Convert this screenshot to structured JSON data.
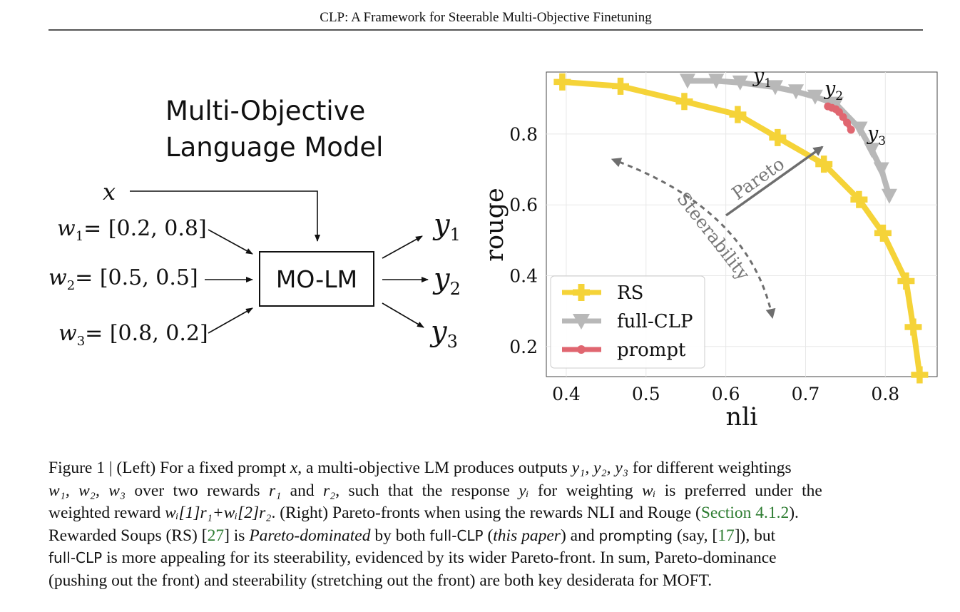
{
  "header": {
    "title": "CLP: A Framework for Steerable Multi-Objective Finetuning"
  },
  "diagram": {
    "title_line1": "Multi-Objective",
    "title_line2": "Language Model",
    "input_label": "x",
    "weights": [
      {
        "name": "w",
        "sub": "1",
        "value": "= [0.2, 0.8]"
      },
      {
        "name": "w",
        "sub": "2",
        "value": "= [0.5, 0.5]"
      },
      {
        "name": "w",
        "sub": "3",
        "value": "= [0.8, 0.2]"
      }
    ],
    "model_label": "MO-LM",
    "outputs": [
      {
        "name": "y",
        "sub": "1"
      },
      {
        "name": "y",
        "sub": "2"
      },
      {
        "name": "y",
        "sub": "3"
      }
    ]
  },
  "chart_data": {
    "type": "line",
    "title": "",
    "xlabel": "nli",
    "ylabel": "rouge",
    "xlim": [
      0.375,
      0.865
    ],
    "ylim": [
      0.115,
      0.975
    ],
    "xticks": [
      "0.4",
      "0.5",
      "0.6",
      "0.7",
      "0.8"
    ],
    "yticks": [
      "0.2",
      "0.4",
      "0.6",
      "0.8"
    ],
    "grid": true,
    "legend_position": "lower-left",
    "series": [
      {
        "name": "RS",
        "color": "#f5d338",
        "marker": "plus",
        "x": [
          0.395,
          0.468,
          0.548,
          0.615,
          0.665,
          0.723,
          0.767,
          0.797,
          0.826,
          0.835,
          0.843
        ],
        "y": [
          0.947,
          0.935,
          0.892,
          0.855,
          0.79,
          0.715,
          0.615,
          0.52,
          0.385,
          0.255,
          0.12
        ]
      },
      {
        "name": "full-CLP",
        "color": "#b8b8b8",
        "marker": "triangle-down",
        "x": [
          0.552,
          0.588,
          0.618,
          0.662,
          0.688,
          0.712,
          0.738,
          0.768,
          0.783,
          0.795,
          0.805
        ],
        "y": [
          0.95,
          0.95,
          0.945,
          0.932,
          0.92,
          0.905,
          0.885,
          0.815,
          0.755,
          0.7,
          0.625
        ]
      },
      {
        "name": "prompt",
        "color": "#e06670",
        "marker": "circle",
        "x": [
          0.728,
          0.733,
          0.738,
          0.742,
          0.747,
          0.752,
          0.757
        ],
        "y": [
          0.878,
          0.874,
          0.87,
          0.862,
          0.848,
          0.832,
          0.812
        ]
      }
    ],
    "annotations": [
      {
        "text": "y",
        "sub": "1",
        "x": 0.658,
        "y": 0.978
      },
      {
        "text": "y",
        "sub": "2",
        "x": 0.748,
        "y": 0.927
      },
      {
        "text": "y",
        "sub": "3",
        "x": 0.802,
        "y": 0.768
      },
      {
        "text": "Pareto"
      },
      {
        "text": "Steerability"
      }
    ]
  },
  "caption": {
    "figure_label": "Figure 1 | (Left) For a fixed prompt ",
    "prompt_var": "x",
    "l1_b": ", a multi-objective LM produces outputs ",
    "outputs_vars": "y₁, y₂, y₃",
    "l1_c": " for different weightings",
    "weights_vars": "w₁, w₂, w₃",
    "l2_b": " over two rewards ",
    "r1": "r₁",
    "l2_c": " and ",
    "r2": "r₂",
    "l2_d": ", such that the response ",
    "yi": "yᵢ",
    "l2_e": " for weighting ",
    "wi": "wᵢ",
    "l2_f": " is preferred under the",
    "l3_a": "weighted reward ",
    "weighted_expr": "wᵢ[1]r₁+wᵢ[2]r₂",
    "l3_b": ". (Right) Pareto-fronts when using the rewards NLI and Rouge (",
    "section_ref": "Section 4.1.2",
    "l3_c": ").",
    "l4_a": "Rewarded Soups (RS) [",
    "ref27": "27",
    "l4_b": "] is ",
    "pareto_dominated": "Pareto-dominated",
    "l4_c": " by both ",
    "full_clp": "full-CLP",
    "l4_d": " (",
    "this_paper": "this paper",
    "l4_e": ") and ",
    "prompting": "prompting",
    "l4_f": " (say, [",
    "ref17": "17",
    "l4_g": "]), but",
    "l5_a_sans": "full-CLP",
    "l5_b": " is more appealing for its steerability, evidenced by its wider Pareto-front. In sum, Pareto-dominance",
    "l6": "(pushing out the front) and steerability (stretching out the front) are both key desiderata for MOFT."
  }
}
